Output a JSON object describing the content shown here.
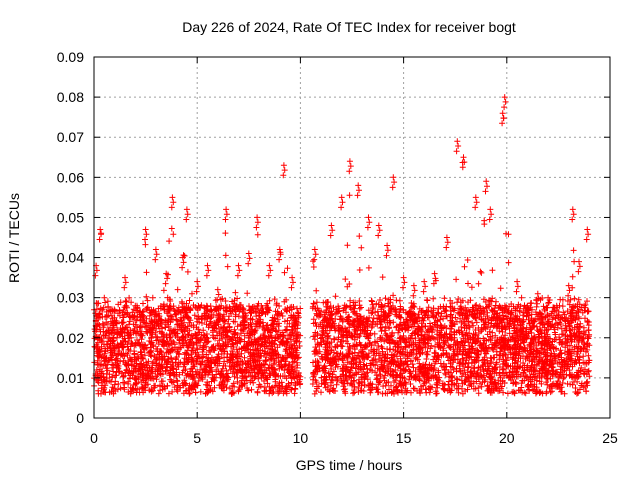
{
  "chart_data": {
    "type": "scatter",
    "title": "Day 226 of 2024, Rate Of TEC Index for receiver bogt",
    "xlabel": "GPS time / hours",
    "ylabel": "ROTI / TECUs",
    "xlim": [
      0,
      25
    ],
    "ylim": [
      0,
      0.09
    ],
    "x_ticks": [
      0,
      5,
      10,
      15,
      20,
      25
    ],
    "y_ticks": [
      0,
      0.01,
      0.02,
      0.03,
      0.04,
      0.05,
      0.06,
      0.07,
      0.08,
      0.09
    ],
    "x_tick_labels": [
      "0",
      "5",
      "10",
      "15",
      "20",
      "25"
    ],
    "y_tick_labels": [
      "0",
      "0.01",
      "0.02",
      "0.03",
      "0.04",
      "0.05",
      "0.06",
      "0.07",
      "0.08",
      "0.09"
    ],
    "grid": true,
    "marker": "+",
    "marker_color": "#ff0000",
    "data_gap_hours": [
      10.0,
      10.6
    ],
    "x": [
      0.1,
      0.3,
      0.5,
      1.0,
      1.5,
      2.0,
      2.5,
      3.0,
      3.5,
      3.8,
      4.3,
      4.5,
      5.0,
      5.5,
      6.0,
      6.4,
      7.0,
      7.5,
      7.9,
      8.5,
      9.0,
      9.2,
      9.6,
      10.7,
      11.5,
      12.0,
      12.4,
      12.8,
      13.3,
      13.8,
      14.2,
      14.5,
      15.0,
      15.5,
      16.0,
      16.5,
      17.1,
      17.6,
      17.9,
      18.5,
      19.0,
      19.2,
      19.8,
      19.9,
      20.5,
      21.0,
      21.5,
      22.0,
      22.5,
      23.0,
      23.2,
      23.5,
      23.9
    ],
    "y": [
      0.038,
      0.047,
      0.03,
      0.025,
      0.035,
      0.028,
      0.047,
      0.042,
      0.036,
      0.055,
      0.04,
      0.052,
      0.034,
      0.038,
      0.032,
      0.052,
      0.038,
      0.041,
      0.05,
      0.038,
      0.042,
      0.063,
      0.035,
      0.042,
      0.048,
      0.055,
      0.064,
      0.058,
      0.05,
      0.048,
      0.043,
      0.06,
      0.035,
      0.033,
      0.034,
      0.036,
      0.045,
      0.069,
      0.065,
      0.055,
      0.059,
      0.052,
      0.076,
      0.08,
      0.034,
      0.028,
      0.031,
      0.03,
      0.025,
      0.033,
      0.052,
      0.039,
      0.047
    ]
  }
}
